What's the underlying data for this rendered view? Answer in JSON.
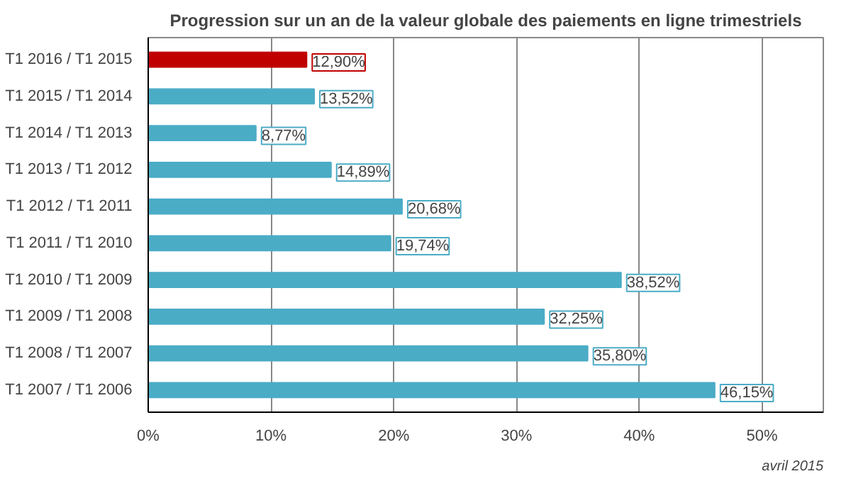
{
  "chart_data": {
    "type": "bar",
    "orientation": "horizontal",
    "title": "Progression sur un an de la valeur globale des paiements en ligne trimestriels",
    "categories": [
      "T1 2016 / T1 2015",
      "T1 2015 / T1 2014",
      "T1 2014 / T1 2013",
      "T1 2013 / T1 2012",
      "T1 2012 / T1 2011",
      "T1 2011 / T1 2010",
      "T1 2010 / T1 2009",
      "T1 2009 / T1 2008",
      "T1 2008 / T1 2007",
      "T1 2007 / T1 2006"
    ],
    "values": [
      12.9,
      13.52,
      8.77,
      14.89,
      20.68,
      19.74,
      38.52,
      32.25,
      35.8,
      46.15
    ],
    "colors": [
      "#c00000",
      "#4bacc6",
      "#4bacc6",
      "#4bacc6",
      "#4bacc6",
      "#4bacc6",
      "#4bacc6",
      "#4bacc6",
      "#4bacc6",
      "#4bacc6"
    ],
    "value_labels": [
      "12,90%",
      "13,52%",
      "8,77%",
      "14,89%",
      "20,68%",
      "19,74%",
      "38,52%",
      "32,25%",
      "35,80%",
      "46,15%"
    ],
    "xlim": [
      0,
      55
    ],
    "xticks": [
      {
        "value": 0,
        "label": "0%"
      },
      {
        "value": 10,
        "label": "10%"
      },
      {
        "value": 20,
        "label": "20%"
      },
      {
        "value": 30,
        "label": "30%"
      },
      {
        "value": 40,
        "label": "40%"
      },
      {
        "value": 50,
        "label": "50%"
      }
    ],
    "grid": "x",
    "annotations": [
      "avril 2015"
    ]
  }
}
